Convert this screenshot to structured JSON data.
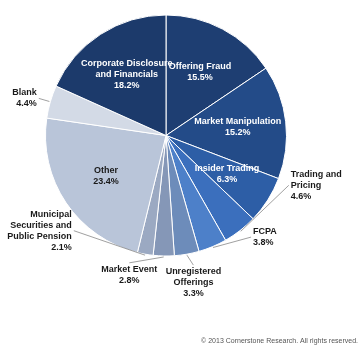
{
  "chart_data": {
    "type": "pie",
    "categories": [
      "Offering Fraud",
      "Market Manipulation",
      "Insider Trading",
      "Trading and Pricing",
      "FCPA",
      "Unregistered Offerings",
      "Market Event",
      "Municipal Securities and Public Pension",
      "Other",
      "Blank",
      "Corporate Disclosure and Financials"
    ],
    "values": [
      15.5,
      15.2,
      6.3,
      4.6,
      3.8,
      3.3,
      2.8,
      2.1,
      23.4,
      4.4,
      18.2
    ],
    "value_labels": [
      "15.5%",
      "15.2%",
      "6.3%",
      "4.6%",
      "3.8%",
      "3.3%",
      "2.8%",
      "2.1%",
      "23.4%",
      "4.4%",
      "18.2%"
    ],
    "colors": [
      "#1e3e72",
      "#234b88",
      "#2d5ea6",
      "#3b6fbd",
      "#4d80c9",
      "#6d8cba",
      "#8597b7",
      "#9ba9c2",
      "#b9c5d9",
      "#d3dae6",
      "#1c3a6b"
    ],
    "data_labels": true,
    "annotation": "© 2013 Cornerstone Research. All rights reserved."
  }
}
